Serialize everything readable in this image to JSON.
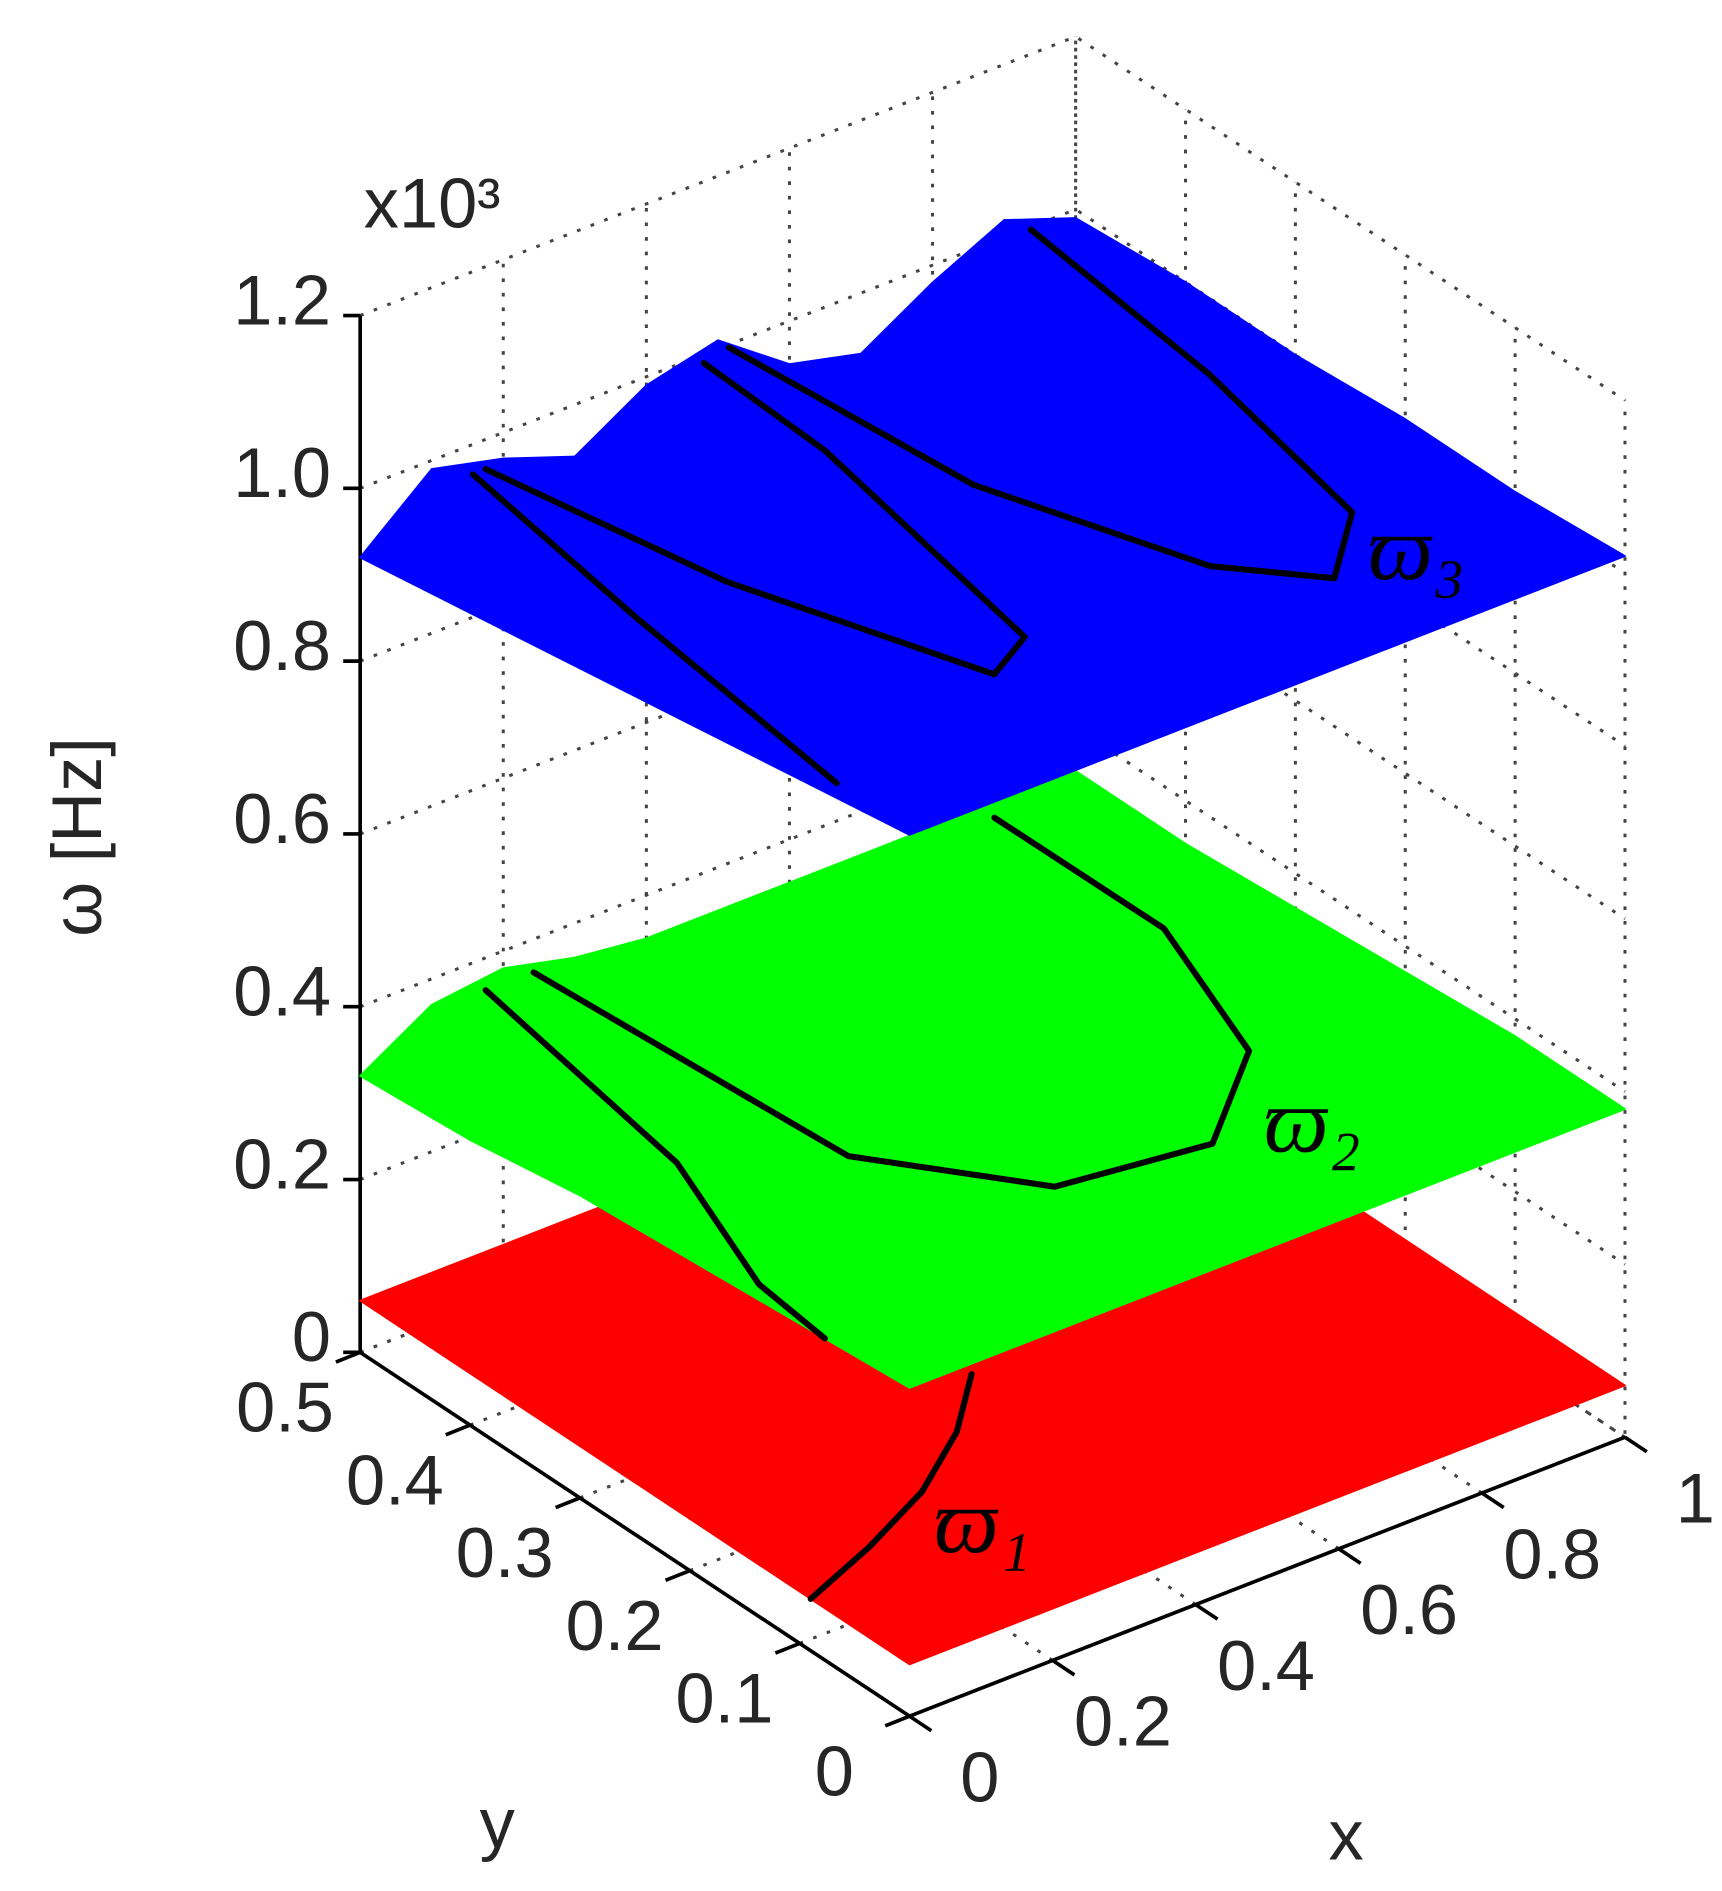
{
  "chart_data": {
    "type": "surface3d",
    "zlabel": "ω [Hz]",
    "xlabel": "x",
    "ylabel": "y",
    "zscale_label": "x10³",
    "xlim": [
      0,
      1
    ],
    "ylim": [
      0,
      0.5
    ],
    "zlim": [
      0,
      1.2
    ],
    "xticks": [
      0,
      0.2,
      0.4,
      0.6,
      0.8,
      1
    ],
    "yticks": [
      0,
      0.1,
      0.2,
      0.3,
      0.4,
      0.5
    ],
    "zticks": [
      0,
      0.2,
      0.4,
      0.6,
      0.8,
      {
        "value": 1,
        "label": "1.0"
      },
      1.2
    ],
    "grid": true,
    "grid_x": [
      0,
      0.1,
      0.2,
      0.3,
      0.4,
      0.5,
      0.6,
      0.7,
      0.8,
      0.9,
      1
    ],
    "grid_y": [
      0,
      0.1,
      0.2,
      0.3,
      0.4,
      0.5
    ],
    "surfaces": [
      {
        "name": "ϖ₁",
        "color": "#ff0000",
        "z": [
          [
            0.06,
            0.06,
            0.06,
            0.06,
            0.06,
            0.06,
            0.06,
            0.06,
            0.06,
            0.06,
            0.06
          ],
          [
            0.06,
            0.06,
            0.06,
            0.06,
            0.06,
            0.06,
            0.06,
            0.06,
            0.06,
            0.06,
            0.06
          ],
          [
            0.06,
            0.06,
            0.06,
            0.06,
            0.06,
            0.06,
            0.06,
            0.06,
            0.06,
            0.06,
            0.06
          ],
          [
            0.06,
            0.06,
            0.06,
            0.06,
            0.06,
            0.06,
            0.06,
            0.06,
            0.06,
            0.06,
            0.06
          ],
          [
            0.06,
            0.06,
            0.06,
            0.06,
            0.06,
            0.06,
            0.06,
            0.06,
            0.06,
            0.06,
            0.06
          ],
          [
            0.06,
            0.06,
            0.06,
            0.06,
            0.06,
            0.06,
            0.06,
            0.06,
            0.06,
            0.06,
            0.06
          ]
        ],
        "curves": [
          {
            "x": [
              0,
              0.12,
              0.24,
              0.35,
              0.44
            ],
            "y": [
              0.09,
              0.115,
              0.145,
              0.185,
              0.23
            ]
          }
        ]
      },
      {
        "name": "ϖ₂",
        "color": "#00ff00",
        "z": [
          [
            0.38,
            0.38,
            0.38,
            0.38,
            0.38,
            0.38,
            0.38,
            0.38,
            0.38,
            0.38,
            0.38
          ],
          [
            0.37,
            0.38,
            0.38,
            0.38,
            0.38,
            0.38,
            0.38,
            0.38,
            0.38,
            0.38,
            0.38
          ],
          [
            0.36,
            0.37,
            0.38,
            0.38,
            0.38,
            0.38,
            0.38,
            0.38,
            0.37,
            0.37,
            0.37
          ],
          [
            0.35,
            0.37,
            0.38,
            0.38,
            0.37,
            0.37,
            0.37,
            0.37,
            0.37,
            0.36,
            0.36
          ],
          [
            0.33,
            0.37,
            0.38,
            0.37,
            0.36,
            0.36,
            0.36,
            0.36,
            0.36,
            0.36,
            0.35
          ],
          [
            0.32,
            0.37,
            0.38,
            0.36,
            0.35,
            0.35,
            0.35,
            0.35,
            0.35,
            0.35,
            0.35
          ]
        ],
        "curves": [
          {
            "x": [
              0.16,
              0.105,
              0.02,
              0
            ],
            "y": [
              0.49,
              0.28,
              0.15,
              0.077
            ]
          },
          {
            "x": [
              0.227,
              0.254,
              0.395,
              0.591,
              0.751,
              0.853,
              0.865
            ],
            "y": [
              0.49,
              0.221,
              0.125,
              0.109,
              0.18,
              0.324,
              0.486
            ]
          }
        ]
      },
      {
        "name": "ϖ₃",
        "color": "#0000ff",
        "z": [
          [
            1.02,
            1.02,
            1.02,
            1.02,
            1.02,
            1.02,
            1.02,
            1.02,
            1.02,
            1.02,
            1.02
          ],
          [
            1.0,
            1.01,
            1.01,
            1.0,
            1.01,
            1.02,
            1.01,
            1.0,
            1.01,
            1.02,
            1.01
          ],
          [
            0.98,
            1.01,
            1.0,
            0.99,
            1.01,
            1.02,
            0.99,
            0.98,
            1.0,
            1.02,
            1.01
          ],
          [
            0.96,
            1.0,
            0.99,
            0.97,
            1.0,
            1.01,
            0.98,
            0.97,
            1.0,
            1.02,
            1.0
          ],
          [
            0.94,
            1.0,
            0.98,
            0.96,
            1.0,
            1.01,
            0.96,
            0.95,
            0.99,
            1.02,
            1.0
          ],
          [
            0.92,
            0.99,
            0.97,
            0.94,
            0.99,
            1.01,
            0.95,
            0.93,
            0.98,
            1.02,
            0.99
          ]
        ],
        "curves": [
          {
            "x": [
              0.136,
              0.08,
              0.021
            ],
            "y": [
              0.486,
              0.3,
              0.08
            ]
          },
          {
            "x": [
              0.16,
              0.214,
              0.312,
              0.379,
              0.453,
              0.465
            ],
            "y": [
              0.49,
              0.305,
              0.126,
              0.142,
              0.372,
              0.49
            ]
          },
          {
            "x": [
              0.5,
              0.55,
              0.65,
              0.732,
              0.829,
              0.88,
              0.916
            ],
            "y": [
              0.49,
              0.3,
              0.15,
              0.09,
              0.137,
              0.3,
              0.486
            ]
          }
        ]
      }
    ]
  }
}
